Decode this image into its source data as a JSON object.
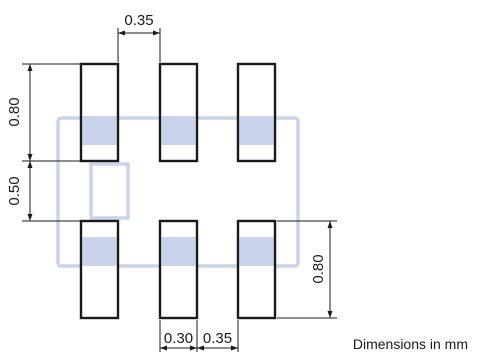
{
  "diagram": {
    "dimensions": {
      "pad_pitch_top": "0.35",
      "pad_height": "0.80",
      "row_gap": "0.50",
      "pad_height_right": "0.80",
      "pad_width": "0.30",
      "pad_gap": "0.35"
    },
    "footnote": "Dimensions in mm",
    "colors": {
      "pad_outline": "#1a1a1a",
      "body_outline": "#c9d4ec",
      "overlap_fill": "#c9d4ec",
      "dimension_lines": "#1a1a1a"
    }
  }
}
